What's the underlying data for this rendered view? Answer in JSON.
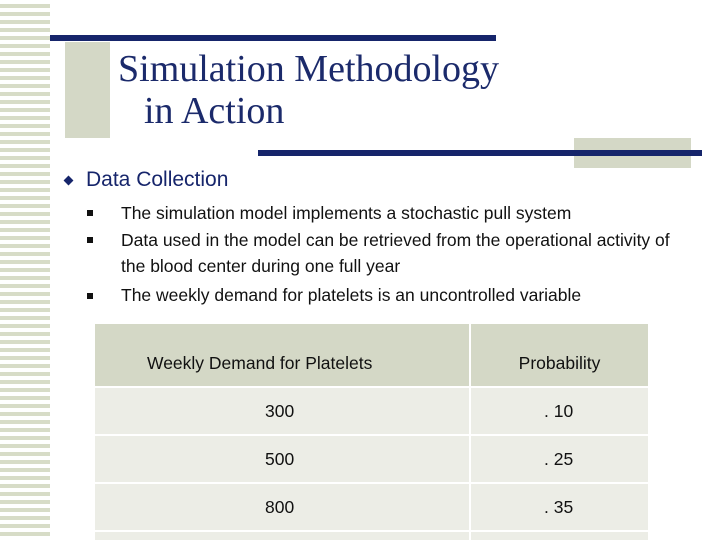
{
  "slide": {
    "title_line1": "Simulation Methodology",
    "title_line2": "in Action",
    "section_heading": "Data Collection",
    "bullets": [
      "The simulation model implements a stochastic pull system",
      "Data used in the model can be retrieved from the operational activity of the blood center during one full year",
      "The weekly demand for platelets is an uncontrolled variable"
    ]
  },
  "table": {
    "headers": [
      "Weekly Demand for Platelets",
      "Probability"
    ],
    "rows": [
      {
        "demand": "300",
        "probability": ". 10"
      },
      {
        "demand": "500",
        "probability": ". 25"
      },
      {
        "demand": "800",
        "probability": ". 35"
      }
    ]
  },
  "colors": {
    "title": "#1b2a6b",
    "accent_bar": "#16256b",
    "table_header": "#d4d8c6",
    "table_body": "#ecede6"
  }
}
